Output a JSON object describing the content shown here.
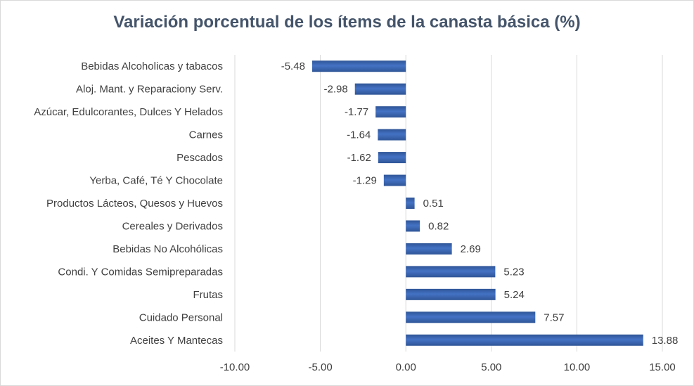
{
  "chart_data": {
    "type": "bar",
    "orientation": "horizontal",
    "title": "Variación porcentual de los ítems de la canasta básica (%)",
    "categories": [
      "Bebidas Alcoholicas y tabacos",
      "Aloj. Mant. y Reparaciony Serv.",
      "Azúcar, Edulcorantes, Dulces Y Helados",
      "Carnes",
      "Pescados",
      "Yerba, Café, Té Y Chocolate",
      "Productos Lácteos, Quesos y Huevos",
      "Cereales y Derivados",
      "Bebidas No Alcohólicas",
      "Condi. Y Comidas Semipreparadas",
      "Frutas",
      "Cuidado Personal",
      "Aceites Y Mantecas"
    ],
    "values": [
      -5.48,
      -2.98,
      -1.77,
      -1.64,
      -1.62,
      -1.29,
      0.51,
      0.82,
      2.69,
      5.23,
      5.24,
      7.57,
      13.88
    ],
    "data_labels": [
      "-5.48",
      "-2.98",
      "-1.77",
      "-1.64",
      "-1.62",
      "-1.29",
      "0.51",
      "0.82",
      "2.69",
      "5.23",
      "5.24",
      "7.57",
      "13.88"
    ],
    "xlim": [
      -10,
      15
    ],
    "x_ticks": [
      "-10.00",
      "-5.00",
      "0.00",
      "5.00",
      "10.00",
      "15.00"
    ],
    "grid": "vertical",
    "legend": "none",
    "colors": {
      "bar": "#4472c4",
      "bar_dark": "#2f5597",
      "grid": "#d9d9d9",
      "text": "#404040",
      "title": "#44546a"
    }
  }
}
